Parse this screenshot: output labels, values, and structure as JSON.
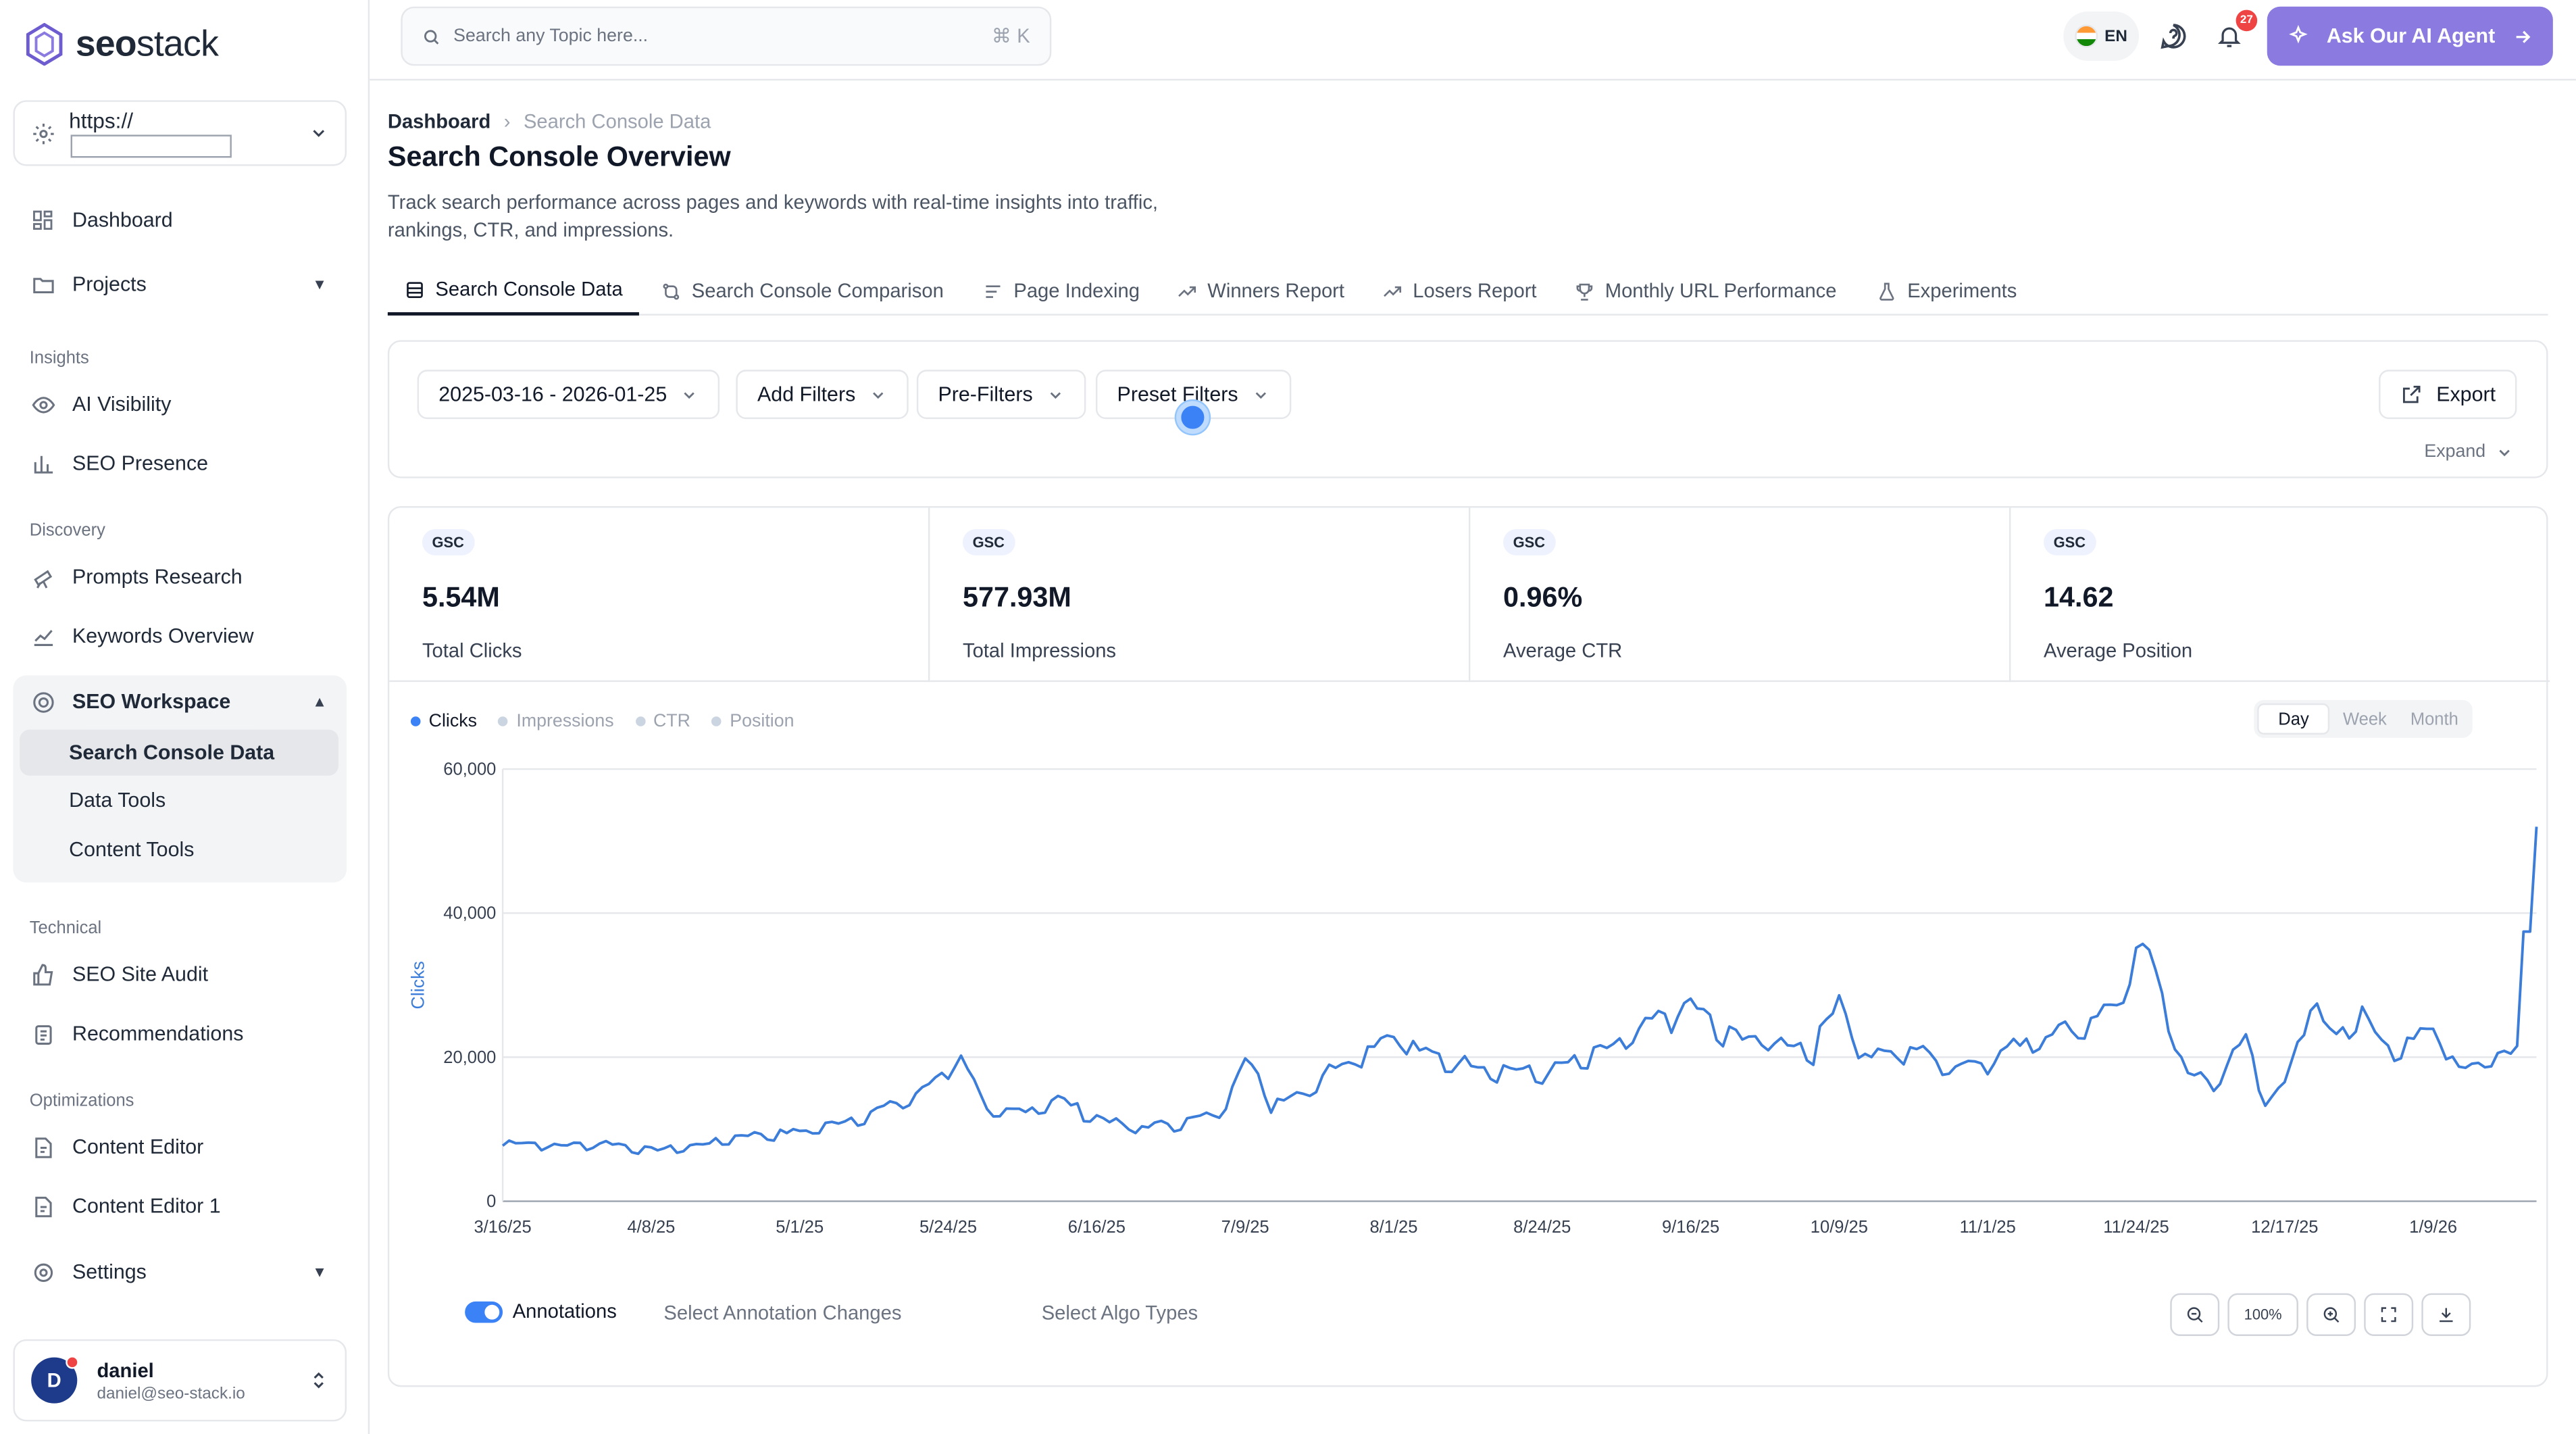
{
  "sidebar": {
    "logo_bold": "seo",
    "logo_light": "stack",
    "site_prefix": "https://",
    "items": {
      "dashboard": "Dashboard",
      "projects": "Projects",
      "ai_visibility": "AI Visibility",
      "seo_presence": "SEO Presence",
      "prompts_research": "Prompts Research",
      "keywords_overview": "Keywords Overview",
      "seo_workspace": "SEO Workspace",
      "search_console_data": "Search Console Data",
      "data_tools": "Data Tools",
      "content_tools": "Content Tools",
      "seo_site_audit": "SEO Site Audit",
      "recommendations": "Recommendations",
      "content_editor": "Content Editor",
      "content_editor_1": "Content Editor 1",
      "settings": "Settings"
    },
    "sections": {
      "insights": "Insights",
      "discovery": "Discovery",
      "technical": "Technical",
      "optimizations": "Optimizations"
    },
    "user": {
      "initial": "D",
      "name": "daniel",
      "email": "daniel@seo-stack.io"
    }
  },
  "topbar": {
    "search_placeholder": "Search any Topic here...",
    "shortcut": "⌘ K",
    "lang": "EN",
    "notifications": "27",
    "ai_button": "Ask Our AI Agent"
  },
  "page": {
    "breadcrumb_root": "Dashboard",
    "breadcrumb_current": "Search Console Data",
    "title": "Search Console Overview",
    "description": "Track search performance across pages and keywords with real-time insights into traffic, rankings, CTR, and impressions."
  },
  "tabs": [
    "Search Console Data",
    "Search Console Comparison",
    "Page Indexing",
    "Winners Report",
    "Losers Report",
    "Monthly URL Performance",
    "Experiments"
  ],
  "filters": {
    "date_range": "2025-03-16 - 2026-01-25",
    "add_filters": "Add Filters",
    "pre_filters": "Pre-Filters",
    "preset_filters": "Preset Filters",
    "export": "Export",
    "expand": "Expand"
  },
  "stats": [
    {
      "badge": "GSC",
      "value": "5.54M",
      "label": "Total Clicks"
    },
    {
      "badge": "GSC",
      "value": "577.93M",
      "label": "Total Impressions"
    },
    {
      "badge": "GSC",
      "value": "0.96%",
      "label": "Average CTR"
    },
    {
      "badge": "GSC",
      "value": "14.62",
      "label": "Average Position"
    }
  ],
  "legend": [
    "Clicks",
    "Impressions",
    "CTR",
    "Position"
  ],
  "granularity": [
    "Day",
    "Week",
    "Month"
  ],
  "annotations": {
    "label": "Annotations",
    "select_changes": "Select Annotation Changes",
    "select_algo": "Select Algo Types",
    "zoom": "100%"
  },
  "colors": {
    "accent": "#8b7ae0",
    "line": "#3b7dd8",
    "badge_bg": "#eef2ff"
  },
  "chart_data": {
    "type": "line",
    "ylabel": "Clicks",
    "ylim": [
      0,
      60000
    ],
    "y_ticks": [
      "0",
      "20,000",
      "40,000",
      "60,000"
    ],
    "x_ticks": [
      "3/16/25",
      "4/8/25",
      "5/1/25",
      "5/24/25",
      "6/16/25",
      "7/9/25",
      "8/1/25",
      "8/24/25",
      "9/16/25",
      "10/9/25",
      "11/1/25",
      "11/24/25",
      "12/17/25",
      "1/9/26"
    ],
    "series": [
      {
        "name": "Clicks",
        "x_start": "2025-03-16",
        "x_end": "2026-01-25",
        "knots": [
          [
            "2025-03-16",
            8200
          ],
          [
            "2025-03-25",
            7600
          ],
          [
            "2025-04-01",
            8000
          ],
          [
            "2025-04-08",
            7000
          ],
          [
            "2025-04-15",
            7600
          ],
          [
            "2025-04-22",
            9000
          ],
          [
            "2025-05-01",
            9500
          ],
          [
            "2025-05-08",
            11000
          ],
          [
            "2025-05-15",
            13000
          ],
          [
            "2025-05-20",
            15000
          ],
          [
            "2025-05-24",
            18500
          ],
          [
            "2025-05-26",
            20200
          ],
          [
            "2025-05-30",
            12000
          ],
          [
            "2025-06-05",
            12500
          ],
          [
            "2025-06-10",
            14000
          ],
          [
            "2025-06-16",
            11500
          ],
          [
            "2025-06-22",
            10000
          ],
          [
            "2025-06-30",
            11000
          ],
          [
            "2025-07-05",
            12000
          ],
          [
            "2025-07-09",
            20000
          ],
          [
            "2025-07-13",
            13500
          ],
          [
            "2025-07-18",
            15000
          ],
          [
            "2025-07-22",
            18000
          ],
          [
            "2025-08-01",
            23000
          ],
          [
            "2025-08-06",
            20000
          ],
          [
            "2025-08-15",
            18500
          ],
          [
            "2025-08-24",
            17500
          ],
          [
            "2025-09-01",
            20000
          ],
          [
            "2025-09-06",
            22000
          ],
          [
            "2025-09-11",
            25000
          ],
          [
            "2025-09-16",
            27000
          ],
          [
            "2025-09-21",
            23000
          ],
          [
            "2025-09-28",
            22000
          ],
          [
            "2025-10-05",
            21000
          ],
          [
            "2025-10-09",
            28000
          ],
          [
            "2025-10-13",
            19500
          ],
          [
            "2025-10-20",
            21000
          ],
          [
            "2025-10-27",
            18500
          ],
          [
            "2025-11-01",
            19500
          ],
          [
            "2025-11-08",
            22500
          ],
          [
            "2025-11-15",
            24000
          ],
          [
            "2025-11-21",
            27000
          ],
          [
            "2025-11-25",
            35000
          ],
          [
            "2025-11-29",
            26000
          ],
          [
            "2025-12-02",
            17000
          ],
          [
            "2025-12-06",
            16500
          ],
          [
            "2025-12-11",
            22000
          ],
          [
            "2025-12-14",
            14000
          ],
          [
            "2025-12-17",
            15500
          ],
          [
            "2025-12-21",
            28000
          ],
          [
            "2025-12-25",
            22000
          ],
          [
            "2025-12-29",
            26000
          ],
          [
            "2026-01-03",
            20000
          ],
          [
            "2026-01-09",
            24000
          ],
          [
            "2026-01-13",
            18500
          ],
          [
            "2026-01-17",
            19000
          ],
          [
            "2026-01-22",
            21000
          ],
          [
            "2026-01-25",
            52000
          ]
        ]
      }
    ]
  }
}
